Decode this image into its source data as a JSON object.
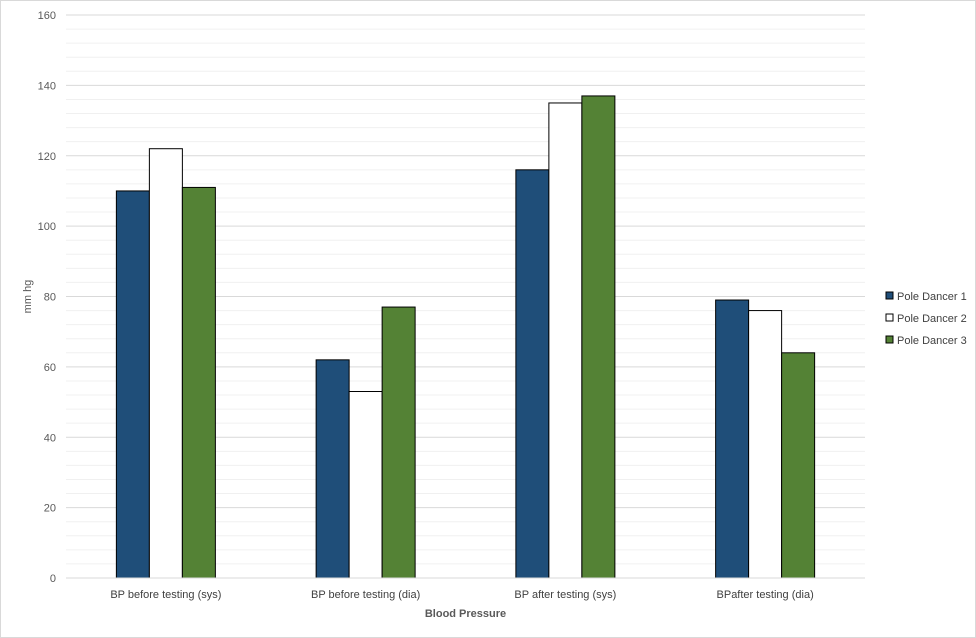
{
  "chart_data": {
    "type": "bar",
    "title": "",
    "xlabel": "Blood Pressure",
    "ylabel": "mm hg",
    "ylim": [
      0,
      160
    ],
    "ytick_step": 20,
    "minor_grid_step": 4,
    "grid": true,
    "legend_position": "right",
    "categories": [
      "BP before testing (sys)",
      "BP before testing (dia)",
      "BP after testing (sys)",
      "BPafter testing (dia)"
    ],
    "series": [
      {
        "name": "Pole Dancer 1",
        "color": "#1f4e79",
        "values": [
          110,
          62,
          116,
          79
        ]
      },
      {
        "name": "Pole Dancer 2",
        "color": "#ffffff",
        "values": [
          122,
          53,
          135,
          76
        ]
      },
      {
        "name": "Pole Dancer 3",
        "color": "#548235",
        "values": [
          111,
          77,
          137,
          64
        ]
      }
    ]
  }
}
